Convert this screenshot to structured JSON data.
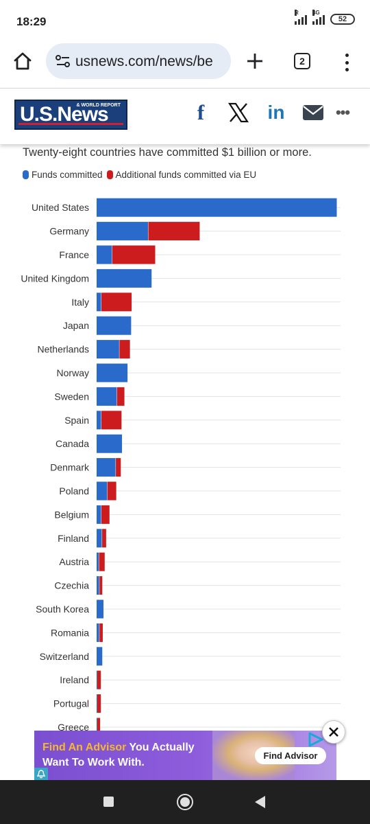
{
  "status_bar": {
    "time": "18:29",
    "battery": "52",
    "sim1_tag": "R",
    "sim2_tag": "4G"
  },
  "browser": {
    "url": "usnews.com/news/be",
    "tab_count": "2"
  },
  "site": {
    "logo_text": "U.S.News",
    "logo_subtext": "& WORLD REPORT",
    "share_icons": [
      "facebook-icon",
      "x-icon",
      "linkedin-icon",
      "mail-icon",
      "more-icon"
    ],
    "share_glyphs": {
      "facebook": "f",
      "linkedin": "in",
      "more": "•••"
    }
  },
  "article": {
    "subtitle": "Twenty-eight countries have committed $1 billion or more."
  },
  "chart_data": {
    "type": "bar",
    "orientation": "horizontal",
    "stacked": true,
    "categories": [
      "United States",
      "Germany",
      "France",
      "United Kingdom",
      "Italy",
      "Japan",
      "Netherlands",
      "Norway",
      "Sweden",
      "Spain",
      "Canada",
      "Denmark",
      "Poland",
      "Belgium",
      "Finland",
      "Austria",
      "Czechia",
      "South Korea",
      "Romania",
      "Switzerland",
      "Ireland",
      "Portugal",
      "Greece"
    ],
    "series": [
      {
        "name": "Funds committed",
        "color": "#2a6acb",
        "values": [
          100,
          21.5,
          6.5,
          23,
          2,
          14.5,
          9.5,
          13,
          8.5,
          2,
          10.7,
          8,
          4.5,
          2,
          2.3,
          1,
          1.2,
          3,
          1.2,
          2.5,
          0.3,
          0.3,
          0.3
        ]
      },
      {
        "name": "Additional funds committed via EU",
        "color": "#cc1c1e",
        "values": [
          0,
          21.5,
          18,
          0,
          12.7,
          0,
          4.5,
          0,
          3.2,
          8.5,
          0,
          2.2,
          3.8,
          3.5,
          1.8,
          2.5,
          1.3,
          0,
          1.5,
          0,
          1.6,
          1.6,
          1.3
        ]
      }
    ],
    "grid": true,
    "legend_position": "top-left"
  },
  "ad": {
    "headline_highlight": "Find An Advisor",
    "headline_rest": " You Actually",
    "headline_line2": "Want To Work With.",
    "cta": "Find Advisor"
  }
}
